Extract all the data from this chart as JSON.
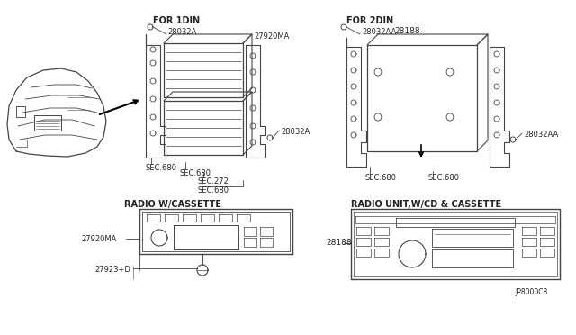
{
  "bg_color": "#ffffff",
  "line_color": "#444444",
  "text_color": "#222222",
  "fig_width": 6.4,
  "fig_height": 3.72,
  "labels": {
    "for_1din": "FOR 1DIN",
    "for_2din": "FOR 2DIN",
    "radio_cassette": "RADIO W/CASSETTE",
    "radio_cd_cassette": "RADIO UNIT,W/CD & CASSETTE",
    "p28032A_top": "28032A",
    "p28032A_right": "28032A",
    "p28032AA_top": "28032AA",
    "p28032AA_right": "28032AA",
    "p27920MA_top": "27920MA",
    "p27920MA_bot": "27920MA",
    "p28188_top": "28188",
    "p28188_bot": "28188",
    "sec680_1a": "SEC.680",
    "sec680_1b": "SEC.680",
    "sec272": "SEC.272",
    "sec680_1c": "SEC.680",
    "sec680_2": "SEC.680",
    "sec680_2b": "SEC.680",
    "p27923D": "27923+D",
    "jp8000c8": "JP8000C8"
  }
}
